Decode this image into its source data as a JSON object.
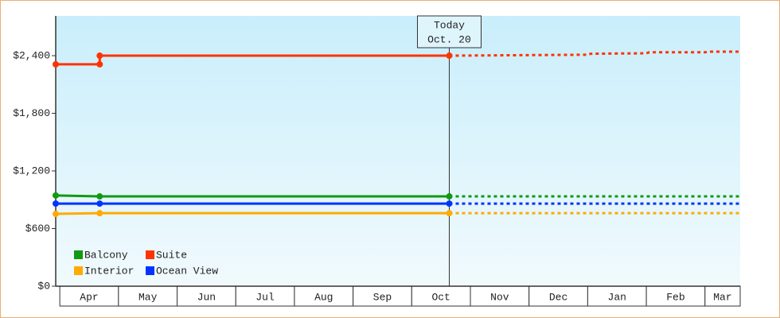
{
  "chart_data": {
    "type": "line",
    "categories": [
      "Apr",
      "May",
      "Jun",
      "Jul",
      "Aug",
      "Sep",
      "Oct",
      "Nov",
      "Dec",
      "Jan",
      "Feb",
      "Mar"
    ],
    "xlim": [
      -0.07,
      11.6
    ],
    "ylim": [
      0,
      2814
    ],
    "yticks": [
      {
        "value": 0,
        "label": "$0"
      },
      {
        "value": 600,
        "label": "$600"
      },
      {
        "value": 1200,
        "label": "$1,200"
      },
      {
        "value": 1800,
        "label": "$1,800"
      },
      {
        "value": 2400,
        "label": "$2,400"
      }
    ],
    "today": {
      "x": 6.64,
      "label": [
        "Today",
        "Oct. 20"
      ]
    },
    "series": [
      {
        "name": "Balcony",
        "color": "#119911",
        "x": [
          -0.07,
          0.68,
          6.64
        ],
        "values": [
          945,
          935,
          935
        ],
        "forecast": {
          "x": [
            6.64,
            11.6
          ],
          "values": [
            935,
            935
          ]
        }
      },
      {
        "name": "Suite",
        "color": "#ff3300",
        "x": [
          -0.07,
          0.68,
          0.68,
          6.64
        ],
        "values": [
          2310,
          2310,
          2400,
          2400
        ],
        "forecast": {
          "x": [
            6.64,
            9.0,
            9.05,
            10.0,
            10.05,
            11.0,
            11.05,
            11.6
          ],
          "values": [
            2400,
            2410,
            2420,
            2425,
            2435,
            2435,
            2442,
            2442
          ]
        }
      },
      {
        "name": "Interior",
        "color": "#ffaa00",
        "x": [
          -0.07,
          0.68,
          6.64
        ],
        "values": [
          753,
          760,
          760
        ],
        "forecast": {
          "x": [
            6.64,
            11.6
          ],
          "values": [
            760,
            760
          ]
        }
      },
      {
        "name": "Ocean View",
        "color": "#0033ff",
        "x": [
          -0.07,
          0.68,
          6.64
        ],
        "values": [
          860,
          860,
          860
        ],
        "forecast": {
          "x": [
            6.64,
            11.6
          ],
          "values": [
            860,
            860
          ]
        }
      }
    ]
  }
}
